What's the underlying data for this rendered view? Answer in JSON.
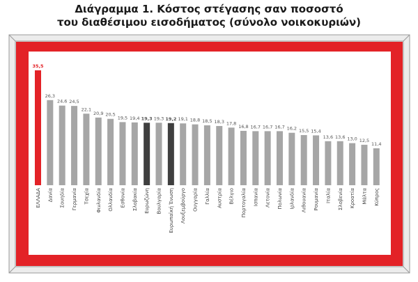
{
  "title": {
    "line1": "Διάγραμμα 1. Κόστος στέγασης σαν ποσοστό",
    "line2": "του διαθέσιμου εισοδήματος (σύνολο νοικοκυριών)"
  },
  "colors": {
    "frame_red": "#e32227",
    "bar_default": "#a6a6a6",
    "bar_greece": "#e32227",
    "bar_eu": "#3f3f3f",
    "bevel_outer": "#9a9a9a",
    "bevel_fill": "#ececec"
  },
  "chart_data": {
    "type": "bar",
    "title": "Διάγραμμα 1. Κόστος στέγασης σαν ποσοστό του διαθέσιμου εισοδήματος (σύνολο νοικοκυριών)",
    "categories": [
      "ΕΛΛΑΔΑ",
      "Δανία",
      "Σουηδία",
      "Γερμανία",
      "Τσεχία",
      "Φινλανδία",
      "Ολλανδία",
      "Εσθονία",
      "Σλοβακία",
      "Ευρωζώνη",
      "Βουλγαρία",
      "Ευρωπαϊκή Ένωση",
      "Λουξεμβούργο",
      "Ουγγαρία",
      "Γαλλία",
      "Αυστρία",
      "Βέλγιο",
      "Πορτογαλία",
      "Ισπανία",
      "Λετονία",
      "Πολωνία",
      "Ιρλανδία",
      "Λιθουανία",
      "Ρουμανία",
      "Ιταλία",
      "Σλοβενία",
      "Κροατία",
      "Μάλτα",
      "Κύπρος"
    ],
    "values": [
      35.5,
      26.3,
      24.6,
      24.5,
      22.1,
      20.9,
      20.5,
      19.5,
      19.4,
      19.3,
      19.3,
      19.2,
      19.1,
      18.8,
      18.5,
      18.3,
      17.8,
      16.8,
      16.7,
      16.7,
      16.7,
      16.2,
      15.5,
      15.4,
      13.6,
      13.6,
      13.0,
      12.5,
      11.4
    ],
    "data_labels": [
      "35,5",
      "26,3",
      "24,6",
      "24,5",
      "22,1",
      "20,9",
      "20,5",
      "19,5",
      "19,4",
      "19,3",
      "19,3",
      "19,2",
      "19,1",
      "18,8",
      "18,5",
      "18,3",
      "17,8",
      "16,8",
      "16,7",
      "16,7",
      "16,7",
      "16,2",
      "15,5",
      "15,4",
      "13,6",
      "13,6",
      "13,0",
      "12,5",
      "11,4"
    ],
    "highlighted": {
      "ΕΛΛΑΔΑ": "red",
      "Ευρωζώνη": "dark",
      "Ευρωπαϊκή Ένωση": "dark"
    },
    "bold_labels": [
      "ΕΛΛΑΔΑ",
      "Ευρωζώνη",
      "Ευρωπαϊκή Ένωση"
    ],
    "ylim": [
      0,
      37
    ],
    "xlabel": "",
    "ylabel": "",
    "grid": false,
    "legend": "none"
  }
}
